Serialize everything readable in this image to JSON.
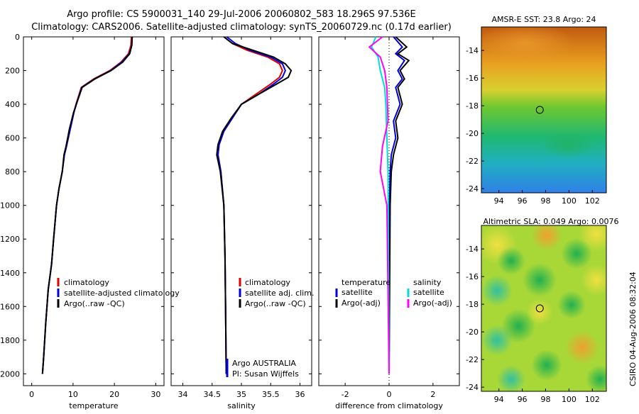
{
  "header": {
    "line1": "Argo profile: CS 5900031_140 29-Jul-2006 20060802_583 18.296S 97.536E",
    "line2": "Climatology: CARS2006. Satellite-adjusted climatology: synTS_20060729.nc (0.17d earlier)"
  },
  "colors": {
    "climatology": "#e00000",
    "satellite": "#0000dd",
    "argo": "#000000",
    "magenta": "#ff00ff",
    "cyan": "#00dddd"
  },
  "credit": "CSIRO 04-Aug-2006 08:32:04",
  "chart_data": [
    {
      "type": "line",
      "xlabel": "temperature",
      "ylabel": "",
      "xlim": [
        -2,
        32
      ],
      "ylim": [
        2070,
        0
      ],
      "xticks": [
        0,
        10,
        20,
        30
      ],
      "yticks": [
        0,
        200,
        400,
        600,
        800,
        1000,
        1200,
        1400,
        1600,
        1800,
        2000
      ],
      "legend": [
        "climatology",
        "satellite-adjusted climatology",
        "Argo(..raw -QC)"
      ],
      "series": [
        {
          "name": "climatology",
          "color": "#e00000",
          "x": [
            24.1,
            24.0,
            23.4,
            21.6,
            18.9,
            15.0,
            12.0,
            10.7,
            10.2,
            9.3,
            8.4,
            7.9,
            7.4,
            6.6,
            6.0,
            5.3,
            4.8,
            4.0,
            3.4,
            2.9,
            2.6
          ],
          "y": [
            0,
            50,
            100,
            150,
            200,
            250,
            300,
            400,
            450,
            550,
            650,
            700,
            800,
            900,
            1000,
            1200,
            1350,
            1500,
            1700,
            1900,
            2000
          ]
        },
        {
          "name": "satellite-adjusted climatology",
          "color": "#0000dd",
          "x": [
            24.3,
            24.2,
            23.6,
            21.8,
            19.1,
            15.2,
            12.1,
            10.8,
            10.2,
            9.3,
            8.4,
            7.9,
            7.4,
            6.6,
            6.0,
            5.3,
            4.8,
            4.0,
            3.4,
            2.9,
            2.6
          ],
          "y": [
            0,
            50,
            100,
            150,
            200,
            250,
            300,
            400,
            450,
            550,
            650,
            700,
            800,
            900,
            1000,
            1200,
            1350,
            1500,
            1700,
            1900,
            2000
          ]
        },
        {
          "name": "Argo(..raw -QC)",
          "color": "#000000",
          "x": [
            24.3,
            24.2,
            23.7,
            22.0,
            19.2,
            15.3,
            12.2,
            10.8,
            10.1,
            9.1,
            8.3,
            7.8,
            7.4,
            6.6,
            6.0,
            5.3,
            4.8,
            4.0,
            3.4,
            2.9,
            2.6
          ],
          "y": [
            0,
            50,
            100,
            150,
            200,
            250,
            300,
            400,
            450,
            550,
            650,
            700,
            800,
            900,
            1000,
            1200,
            1350,
            1500,
            1700,
            1900,
            2000
          ]
        }
      ]
    },
    {
      "type": "line",
      "xlabel": "salinity",
      "ylabel": "",
      "xlim": [
        33.8,
        36.2
      ],
      "ylim": [
        2070,
        0
      ],
      "xticks": [
        34,
        34.5,
        35,
        35.5,
        36
      ],
      "yticks": [],
      "legend": [
        "climatology",
        "satellite adj. clim.",
        "Argo(..raw -QC)"
      ],
      "annotation": [
        "Argo AUSTRALIA",
        "PI: Susan Wijffels"
      ],
      "series": [
        {
          "name": "climatology",
          "color": "#e00000",
          "x": [
            34.7,
            34.85,
            35.1,
            35.45,
            35.65,
            35.7,
            35.65,
            35.5,
            35.25,
            35.0,
            34.85,
            34.7,
            34.62,
            34.6,
            34.65,
            34.7,
            34.72,
            34.73,
            34.74
          ],
          "y": [
            0,
            40,
            80,
            120,
            160,
            200,
            240,
            280,
            340,
            400,
            480,
            560,
            640,
            700,
            800,
            1000,
            1300,
            1600,
            2000
          ]
        },
        {
          "name": "satellite adj. clim.",
          "color": "#0000dd",
          "x": [
            34.75,
            34.9,
            35.15,
            35.5,
            35.7,
            35.75,
            35.7,
            35.55,
            35.3,
            35.0,
            34.85,
            34.7,
            34.62,
            34.6,
            34.65,
            34.7,
            34.72,
            34.73,
            34.74
          ],
          "y": [
            0,
            40,
            80,
            120,
            160,
            200,
            240,
            280,
            340,
            400,
            480,
            560,
            640,
            700,
            800,
            1000,
            1300,
            1600,
            2000
          ]
        },
        {
          "name": "Argo(..raw -QC)",
          "color": "#000000",
          "x": [
            34.7,
            34.85,
            35.2,
            35.55,
            35.75,
            35.85,
            35.8,
            35.6,
            35.3,
            35.0,
            34.83,
            34.68,
            34.6,
            34.58,
            34.64,
            34.7,
            34.72,
            34.73,
            34.74
          ],
          "y": [
            0,
            40,
            80,
            120,
            160,
            200,
            240,
            280,
            340,
            400,
            480,
            560,
            640,
            700,
            800,
            1000,
            1300,
            1600,
            2000
          ]
        }
      ]
    },
    {
      "type": "line",
      "xlabel": "difference from climatology",
      "ylabel": "",
      "xlim": [
        -3.2,
        3.2
      ],
      "ylim": [
        2070,
        0
      ],
      "xticks": [
        -2,
        0,
        2
      ],
      "yticks": [],
      "legend_left": [
        "temperature",
        "satellite",
        "Argo(-adj)"
      ],
      "legend_right": [
        "salinity",
        "satellite",
        "Argo(-adj)"
      ],
      "series": [
        {
          "name": "temperature satellite",
          "color": "#0000dd",
          "x": [
            0.2,
            0.6,
            0.3,
            0.7,
            0.4,
            0.6,
            0.3,
            0.5,
            0.2,
            0.3,
            0.1,
            0.05,
            0.02,
            0.0
          ],
          "y": [
            0,
            60,
            100,
            140,
            200,
            250,
            300,
            400,
            500,
            600,
            700,
            800,
            1000,
            2000
          ]
        },
        {
          "name": "temperature Argo(-adj)",
          "color": "#000000",
          "x": [
            0.3,
            0.8,
            0.4,
            0.9,
            0.5,
            0.7,
            0.4,
            0.6,
            0.3,
            0.4,
            0.2,
            0.1,
            0.05,
            0.0
          ],
          "y": [
            0,
            60,
            100,
            140,
            200,
            250,
            300,
            400,
            500,
            600,
            700,
            800,
            1000,
            2000
          ]
        },
        {
          "name": "salinity satellite",
          "color": "#00dddd",
          "x": [
            -0.6,
            -0.8,
            -0.5,
            -0.4,
            -0.2,
            -0.15,
            -0.1,
            -0.05,
            0.0
          ],
          "y": [
            0,
            60,
            120,
            200,
            300,
            400,
            600,
            800,
            2000
          ]
        },
        {
          "name": "salinity Argo(-adj)",
          "color": "#ff00ff",
          "x": [
            -0.3,
            -0.9,
            -0.4,
            -0.2,
            -0.1,
            -0.05,
            -0.3,
            -0.4,
            -0.1,
            0.0
          ],
          "y": [
            0,
            60,
            120,
            200,
            300,
            500,
            650,
            800,
            1000,
            2000
          ]
        }
      ]
    },
    {
      "type": "heatmap",
      "title": "AMSR-E SST: 23.8 Argo: 24",
      "xticks": [
        94,
        96,
        98,
        100,
        102
      ],
      "yticks": [
        -14,
        -16,
        -18,
        -20,
        -22,
        -24
      ],
      "xlim": [
        92.5,
        103.2
      ],
      "ylim": [
        -24.3,
        -12.3
      ],
      "marker": {
        "lon": 97.5,
        "lat": -18.3
      }
    },
    {
      "type": "heatmap",
      "title": "Altimetric SLA: 0.049 Argo: 0.0076",
      "xticks": [
        94,
        96,
        98,
        100,
        102
      ],
      "yticks": [
        -14,
        -16,
        -18,
        -20,
        -22,
        -24
      ],
      "xlim": [
        92.5,
        103.2
      ],
      "ylim": [
        -24.3,
        -12.3
      ],
      "marker": {
        "lon": 97.5,
        "lat": -18.3
      }
    }
  ]
}
